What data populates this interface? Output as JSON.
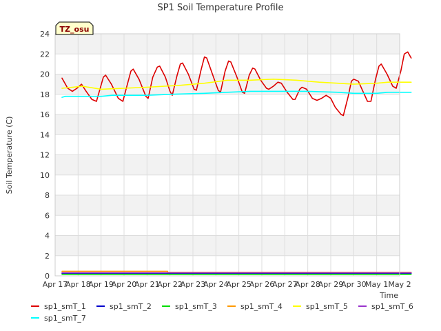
{
  "chart_data": {
    "type": "line",
    "title": "SP1 Soil Temperature Profile",
    "xlabel": "Time",
    "ylabel": "Soil Temperature (C)",
    "annotation": "TZ_osu",
    "ylim": [
      0,
      24
    ],
    "yticks": [
      0,
      2,
      4,
      6,
      8,
      10,
      12,
      14,
      16,
      18,
      20,
      22,
      24
    ],
    "xlim": [
      0,
      15
    ],
    "xticks": [
      {
        "x": 0,
        "label": "Apr 17"
      },
      {
        "x": 1,
        "label": "Apr 18"
      },
      {
        "x": 2,
        "label": "Apr 19"
      },
      {
        "x": 3,
        "label": "Apr 20"
      },
      {
        "x": 4,
        "label": "Apr 21"
      },
      {
        "x": 5,
        "label": "Apr 22"
      },
      {
        "x": 6,
        "label": "Apr 23"
      },
      {
        "x": 7,
        "label": "Apr 24"
      },
      {
        "x": 8,
        "label": "Apr 25"
      },
      {
        "x": 9,
        "label": "Apr 26"
      },
      {
        "x": 10,
        "label": "Apr 27"
      },
      {
        "x": 11,
        "label": "Apr 28"
      },
      {
        "x": 12,
        "label": "Apr 29"
      },
      {
        "x": 13,
        "label": "Apr 30"
      },
      {
        "x": 14,
        "label": "May 1"
      },
      {
        "x": 15,
        "label": "May 2"
      }
    ],
    "grid": true,
    "legend_position": "bottom",
    "series": [
      {
        "name": "sp1_smT_1",
        "color": "#dd0000",
        "points": [
          [
            0.3,
            19.6
          ],
          [
            0.55,
            18.6
          ],
          [
            0.75,
            18.3
          ],
          [
            0.95,
            18.6
          ],
          [
            1.15,
            19.0
          ],
          [
            1.35,
            18.3
          ],
          [
            1.6,
            17.5
          ],
          [
            1.8,
            17.3
          ],
          [
            2.1,
            19.7
          ],
          [
            2.2,
            19.9
          ],
          [
            2.45,
            19.0
          ],
          [
            2.75,
            17.6
          ],
          [
            2.95,
            17.3
          ],
          [
            3.1,
            18.6
          ],
          [
            3.3,
            20.3
          ],
          [
            3.4,
            20.5
          ],
          [
            3.65,
            19.5
          ],
          [
            3.95,
            17.8
          ],
          [
            4.05,
            17.6
          ],
          [
            4.25,
            19.7
          ],
          [
            4.45,
            20.7
          ],
          [
            4.55,
            20.8
          ],
          [
            4.8,
            19.7
          ],
          [
            5.0,
            18.3
          ],
          [
            5.1,
            17.9
          ],
          [
            5.3,
            19.8
          ],
          [
            5.45,
            21.0
          ],
          [
            5.55,
            21.1
          ],
          [
            5.8,
            20.0
          ],
          [
            6.05,
            18.5
          ],
          [
            6.15,
            18.4
          ],
          [
            6.35,
            20.4
          ],
          [
            6.5,
            21.7
          ],
          [
            6.6,
            21.6
          ],
          [
            6.85,
            20.0
          ],
          [
            7.1,
            18.4
          ],
          [
            7.2,
            18.2
          ],
          [
            7.4,
            20.3
          ],
          [
            7.55,
            21.3
          ],
          [
            7.65,
            21.2
          ],
          [
            7.9,
            19.8
          ],
          [
            8.15,
            18.2
          ],
          [
            8.25,
            18.1
          ],
          [
            8.45,
            19.9
          ],
          [
            8.6,
            20.6
          ],
          [
            8.7,
            20.5
          ],
          [
            8.95,
            19.4
          ],
          [
            9.2,
            18.6
          ],
          [
            9.3,
            18.5
          ],
          [
            9.5,
            18.8
          ],
          [
            9.7,
            19.2
          ],
          [
            9.85,
            19.1
          ],
          [
            10.1,
            18.2
          ],
          [
            10.35,
            17.5
          ],
          [
            10.45,
            17.5
          ],
          [
            10.65,
            18.5
          ],
          [
            10.75,
            18.7
          ],
          [
            10.95,
            18.5
          ],
          [
            11.2,
            17.6
          ],
          [
            11.4,
            17.4
          ],
          [
            11.6,
            17.6
          ],
          [
            11.8,
            17.9
          ],
          [
            12.0,
            17.6
          ],
          [
            12.2,
            16.7
          ],
          [
            12.45,
            16.0
          ],
          [
            12.55,
            15.9
          ],
          [
            12.75,
            17.7
          ],
          [
            12.9,
            19.3
          ],
          [
            13.0,
            19.5
          ],
          [
            13.2,
            19.3
          ],
          [
            13.4,
            18.3
          ],
          [
            13.6,
            17.3
          ],
          [
            13.75,
            17.3
          ],
          [
            13.95,
            19.5
          ],
          [
            14.1,
            20.8
          ],
          [
            14.2,
            21.0
          ],
          [
            14.45,
            20.0
          ],
          [
            14.7,
            18.8
          ],
          [
            14.85,
            18.6
          ],
          [
            15.05,
            20.3
          ],
          [
            15.2,
            22.0
          ],
          [
            15.35,
            22.2
          ],
          [
            15.5,
            21.6
          ]
        ]
      },
      {
        "name": "sp1_smT_2",
        "color": "#0000cc",
        "points": [
          [
            0.3,
            0.25
          ],
          [
            15.5,
            0.25
          ]
        ]
      },
      {
        "name": "sp1_smT_3",
        "color": "#00dd00",
        "points": [
          [
            0.3,
            0.15
          ],
          [
            15.5,
            0.15
          ]
        ]
      },
      {
        "name": "sp1_smT_4",
        "color": "#ff9900",
        "points": [
          [
            0.3,
            0.45
          ],
          [
            4.9,
            0.45
          ],
          [
            4.9,
            0.35
          ],
          [
            15.5,
            0.35
          ]
        ]
      },
      {
        "name": "sp1_smT_5",
        "color": "#ffff00",
        "points": [
          [
            0.3,
            18.6
          ],
          [
            1.2,
            18.8
          ],
          [
            2.0,
            18.5
          ],
          [
            4.0,
            18.7
          ],
          [
            5.5,
            18.9
          ],
          [
            6.5,
            19.1
          ],
          [
            7.5,
            19.4
          ],
          [
            8.5,
            19.4
          ],
          [
            9.5,
            19.5
          ],
          [
            10.5,
            19.4
          ],
          [
            11.5,
            19.2
          ],
          [
            12.3,
            19.1
          ],
          [
            13.0,
            19.0
          ],
          [
            14.0,
            19.1
          ],
          [
            14.5,
            19.2
          ],
          [
            15.5,
            19.2
          ]
        ]
      },
      {
        "name": "sp1_smT_6",
        "color": "#9933cc",
        "points": [
          [
            0.3,
            0.3
          ],
          [
            15.5,
            0.3
          ]
        ]
      },
      {
        "name": "sp1_smT_7",
        "color": "#00ffff",
        "points": [
          [
            0.3,
            17.7
          ],
          [
            0.45,
            17.8
          ],
          [
            2.0,
            17.8
          ],
          [
            2.5,
            17.9
          ],
          [
            4.0,
            17.9
          ],
          [
            5.0,
            18.0
          ],
          [
            6.5,
            18.1
          ],
          [
            7.5,
            18.2
          ],
          [
            8.5,
            18.3
          ],
          [
            10.0,
            18.3
          ],
          [
            11.0,
            18.3
          ],
          [
            12.3,
            18.2
          ],
          [
            13.0,
            18.1
          ],
          [
            14.0,
            18.1
          ],
          [
            14.5,
            18.2
          ],
          [
            15.5,
            18.2
          ]
        ]
      }
    ]
  }
}
